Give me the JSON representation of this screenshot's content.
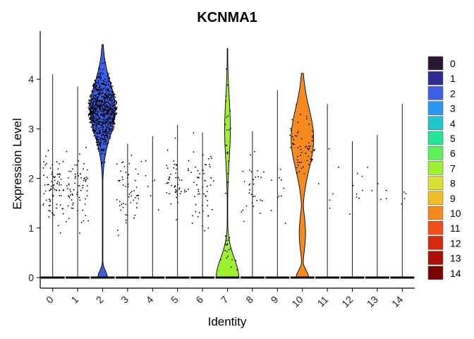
{
  "chart_data": {
    "type": "violin",
    "title": "KCNMA1",
    "xlabel": "Identity",
    "ylabel": "Expression Level",
    "ylim": [
      -0.1,
      4.9
    ],
    "y_ticks": [
      0,
      1,
      2,
      3,
      4
    ],
    "grid": false,
    "legend_position": "right",
    "categories": [
      "0",
      "1",
      "2",
      "3",
      "4",
      "5",
      "6",
      "7",
      "8",
      "9",
      "10",
      "11",
      "12",
      "13",
      "14"
    ],
    "colors": [
      "#2a1537",
      "#2e2d8f",
      "#3c5fe6",
      "#2b97f0",
      "#1fc6cc",
      "#24e49a",
      "#5ef25a",
      "#a0f032",
      "#d9e034",
      "#f0bc2a",
      "#f58a1f",
      "#ee5017",
      "#d12a0c",
      "#a80f05",
      "#7a0403"
    ],
    "max_expression": [
      4.1,
      3.85,
      4.7,
      2.7,
      2.85,
      3.08,
      2.93,
      4.62,
      2.95,
      3.78,
      4.12,
      3.5,
      2.75,
      2.88,
      3.5
    ],
    "filled_violin_groups": [
      "2",
      "7",
      "10"
    ]
  }
}
